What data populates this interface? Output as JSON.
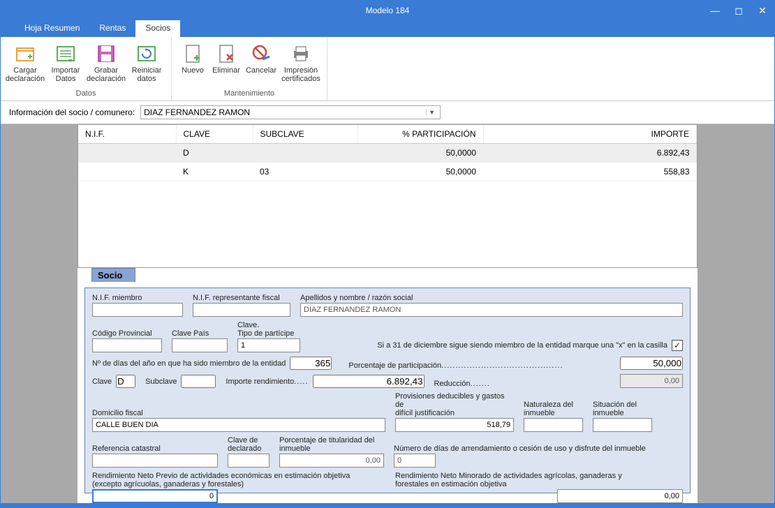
{
  "window": {
    "title": "Modelo 184"
  },
  "tabs": {
    "hoja": "Hoja Resumen",
    "rentas": "Rentas",
    "socios": "Socios"
  },
  "ribbon": {
    "datos": {
      "title": "Datos",
      "cargar": "Cargar\ndeclaración",
      "importar": "Importar\nDatos",
      "grabar": "Grabar\ndeclaración",
      "reiniciar": "Reiniciar\ndatos"
    },
    "mant": {
      "title": "Mantenimiento",
      "nuevo": "Nuevo",
      "eliminar": "Eliminar",
      "cancelar": "Cancelar",
      "impresion": "Impresión\ncertificados"
    }
  },
  "info": {
    "label": "Información del socio / comunero:",
    "selected": "DIAZ FERNANDEZ RAMON"
  },
  "grid": {
    "headers": {
      "nif": "N.I.F.",
      "clave": "CLAVE",
      "subclave": "SUBCLAVE",
      "part": "% PARTICIPACIÓN",
      "importe": "IMPORTE"
    },
    "rows": [
      {
        "nif": "",
        "clave": "D",
        "subclave": "",
        "part": "50,0000",
        "importe": "6.892,43"
      },
      {
        "nif": "",
        "clave": "K",
        "subclave": "03",
        "part": "50,0000",
        "importe": "558,83"
      }
    ]
  },
  "form": {
    "tab": "Socio",
    "labels": {
      "nif_miembro": "N.I.F. miembro",
      "nif_rep": "N.I.F. representante fiscal",
      "apellidos": "Apellidos y nombre / razón social",
      "cod_prov": "Código Provincial",
      "clave_pais": "Clave País",
      "clave_tipo": "Clave.\nTipo de partícipe",
      "x_casilla": "Si a 31 de diciembre sigue siendo miembro de la entidad marque una \"x\" en la casilla",
      "dias": "Nº de días del año en que ha sido miembro de la entidad",
      "porc_part": "Porcentaje de participación",
      "clave": "Clave",
      "subclave": "Subclave",
      "importe_rend": "Importe rendimiento",
      "reduccion": "Reducción",
      "domicilio": "Domicilio fiscal",
      "provisiones": "Provisiones deducibles y gastos de\ndifícil justificación",
      "naturaleza": "Naturaleza del\ninmueble",
      "situacion": "Situación del\ninmueble",
      "ref_cat": "Referencia catastral",
      "clave_decl": "Clave de\ndeclarado",
      "porc_tit": "Porcentaje de titularidad del\ninmueble",
      "dias_arr": "Número de días de arrendamiento o cesión de uso y disfrute del inmueble",
      "rend_previo": "Rendimiento Neto Previo de actividades económicas en estimación objetiva\n(excepto agrícuolas, ganaderas y forestales)",
      "rend_minorado": "Rendimiento Neto Minorado de actividades agrícolas, ganaderas y\nforestales en estimación objetiva"
    },
    "values": {
      "nif_miembro": "",
      "nif_rep": "",
      "apellidos": "DIAZ FERNANDEZ RAMON",
      "cod_prov": "",
      "clave_pais": "",
      "tipo_part": "1",
      "x_checked": "✓",
      "dias": "365",
      "porc_part": "50,000",
      "clave": "D",
      "subclave": "",
      "importe_rend": "6.892,43",
      "reduccion": "0,00",
      "domicilio": "CALLE BUEN DIA",
      "provisiones": "518,79",
      "naturaleza": "",
      "situacion": "",
      "ref_cat": "",
      "clave_decl": "",
      "porc_tit": "0,00",
      "dias_arr": "0",
      "rend_previo": "0",
      "rend_minorado": "0,00"
    }
  },
  "colors": {
    "accent": "#3a7bd5",
    "panel": "#dbe4f0",
    "tab_bg": "#8aa3d0"
  }
}
